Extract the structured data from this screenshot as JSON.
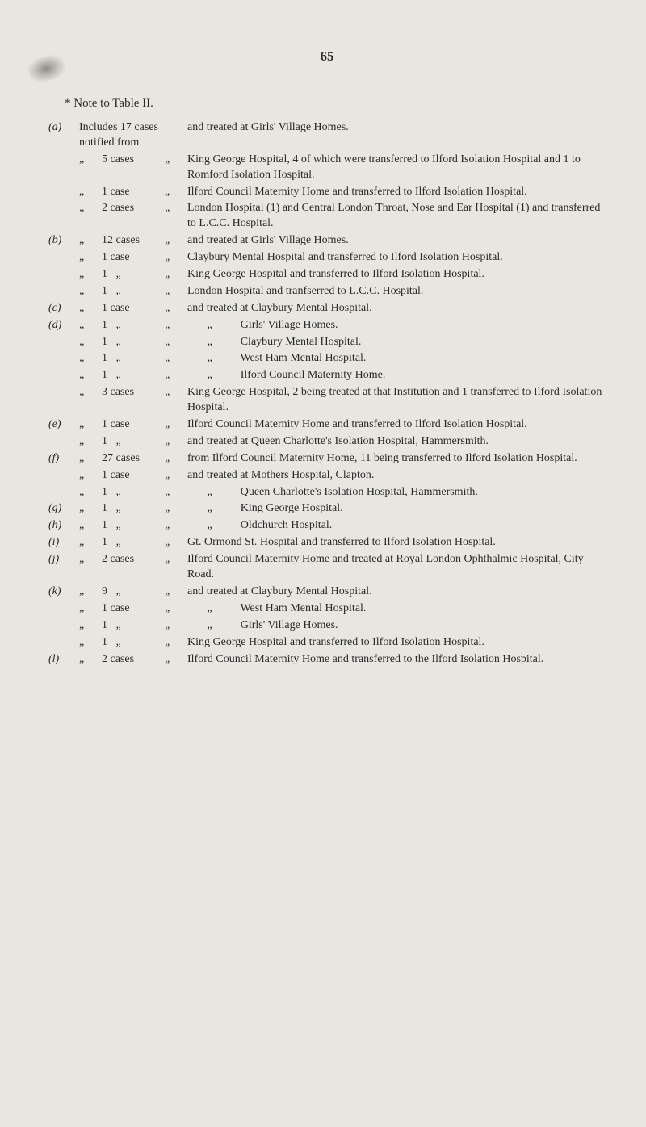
{
  "page_number": "65",
  "note_title": "* Note to Table II.",
  "rows": [
    {
      "letter": "(a)",
      "ditto1": "",
      "count": "Includes 17 cases notified from",
      "ditto2": "",
      "desc": "and treated at Girls' Village Homes.",
      "wide_count": true
    },
    {
      "letter": "",
      "ditto1": "„",
      "count": "5 cases",
      "ditto2": "„",
      "desc": "King George Hospital, 4 of which were transferred to Ilford Isolation Hospital and 1 to Romford Isolation Hospital."
    },
    {
      "letter": "",
      "ditto1": "„",
      "count": "1 case",
      "ditto2": "„",
      "desc": "Ilford Council Maternity Home and transferred to Ilford Isolation Hospital."
    },
    {
      "letter": "",
      "ditto1": "„",
      "count": "2 cases",
      "ditto2": "„",
      "desc": "London Hospital (1) and Central London Throat, Nose and Ear Hospital (1) and transferred to L.C.C. Hospital."
    },
    {
      "letter": "(b)",
      "ditto1": "„",
      "count": "12 cases",
      "ditto2": "„",
      "desc": "and treated at Girls' Village Homes."
    },
    {
      "letter": "",
      "ditto1": "„",
      "count": "1 case",
      "ditto2": "„",
      "desc": "Claybury Mental Hospital and transferred to Ilford Isolation Hospital."
    },
    {
      "letter": "",
      "ditto1": "„",
      "count": "1   „",
      "ditto2": "„",
      "desc": "King George Hospital and transferred to Ilford Isolation Hospital."
    },
    {
      "letter": "",
      "ditto1": "„",
      "count": "1   „",
      "ditto2": "„",
      "desc": "London Hospital and tranfserred to L.C.C. Hospital."
    },
    {
      "letter": "(c)",
      "ditto1": "„",
      "count": "1 case",
      "ditto2": "„",
      "desc": "and treated at Claybury Mental Hospital."
    },
    {
      "letter": "(d)",
      "ditto1": "„",
      "count": "1   „",
      "ditto2": "„",
      "desc": "       „          Girls' Village Homes."
    },
    {
      "letter": "",
      "ditto1": "„",
      "count": "1   „",
      "ditto2": "„",
      "desc": "       „          Claybury Mental Hospital."
    },
    {
      "letter": "",
      "ditto1": "„",
      "count": "1   „",
      "ditto2": "„",
      "desc": "       „          West Ham Mental Hospital."
    },
    {
      "letter": "",
      "ditto1": "„",
      "count": "1   „",
      "ditto2": "„",
      "desc": "       „          Ilford Council Maternity Home."
    },
    {
      "letter": "",
      "ditto1": "„",
      "count": "3 cases",
      "ditto2": "„",
      "desc": "King George Hospital, 2 being treated at that Institution and 1 transferred to Ilford Isolation Hospital."
    },
    {
      "letter": "(e)",
      "ditto1": "„",
      "count": "1 case",
      "ditto2": "„",
      "desc": "Ilford Council Maternity Home and transferred to Ilford Isolation Hospital."
    },
    {
      "letter": "",
      "ditto1": "„",
      "count": "1   „",
      "ditto2": "„",
      "desc": "and treated at Queen Charlotte's Isolation Hospital, Hammersmith."
    },
    {
      "letter": "(f)",
      "ditto1": "„",
      "count": "27 cases",
      "ditto2": "„",
      "desc": "from Ilford Council Maternity Home, 11 being transferred to Ilford Isolation Hospital."
    },
    {
      "letter": "",
      "ditto1": "„",
      "count": "1 case",
      "ditto2": "„",
      "desc": "and treated at Mothers Hospital, Clapton."
    },
    {
      "letter": "",
      "ditto1": "„",
      "count": "1   „",
      "ditto2": "„",
      "desc": "       „          Queen Charlotte's Isolation Hospital, Hammersmith."
    },
    {
      "letter": "(g)",
      "ditto1": "„",
      "count": "1   „",
      "ditto2": "„",
      "desc": "       „          King George Hospital."
    },
    {
      "letter": "(h)",
      "ditto1": "„",
      "count": "1   „",
      "ditto2": "„",
      "desc": "       „          Oldchurch Hospital."
    },
    {
      "letter": "(i)",
      "ditto1": "„",
      "count": "1   „",
      "ditto2": "„",
      "desc": "Gt. Ormond St. Hospital and transferred to Ilford Isolation Hospital."
    },
    {
      "letter": "(j)",
      "ditto1": "„",
      "count": "2 cases",
      "ditto2": "„",
      "desc": "Ilford Council Maternity Home and treated at Royal London Ophthalmic Hospital, City Road."
    },
    {
      "letter": "(k)",
      "ditto1": "„",
      "count": "9   „",
      "ditto2": "„",
      "desc": "and treated at Claybury Mental Hospital."
    },
    {
      "letter": "",
      "ditto1": "„",
      "count": "1 case",
      "ditto2": "„",
      "desc": "       „          West Ham Mental Hospital."
    },
    {
      "letter": "",
      "ditto1": "„",
      "count": "1   „",
      "ditto2": "„",
      "desc": "       „          Girls' Village Homes."
    },
    {
      "letter": "",
      "ditto1": "„",
      "count": "1   „",
      "ditto2": "„",
      "desc": "King George Hospital and transferred to Ilford Isolation Hospital."
    },
    {
      "letter": "(l)",
      "ditto1": "„",
      "count": "2 cases",
      "ditto2": "„",
      "desc": "Ilford Council Maternity Home and transferred to the Ilford Isolation Hospital."
    }
  ]
}
